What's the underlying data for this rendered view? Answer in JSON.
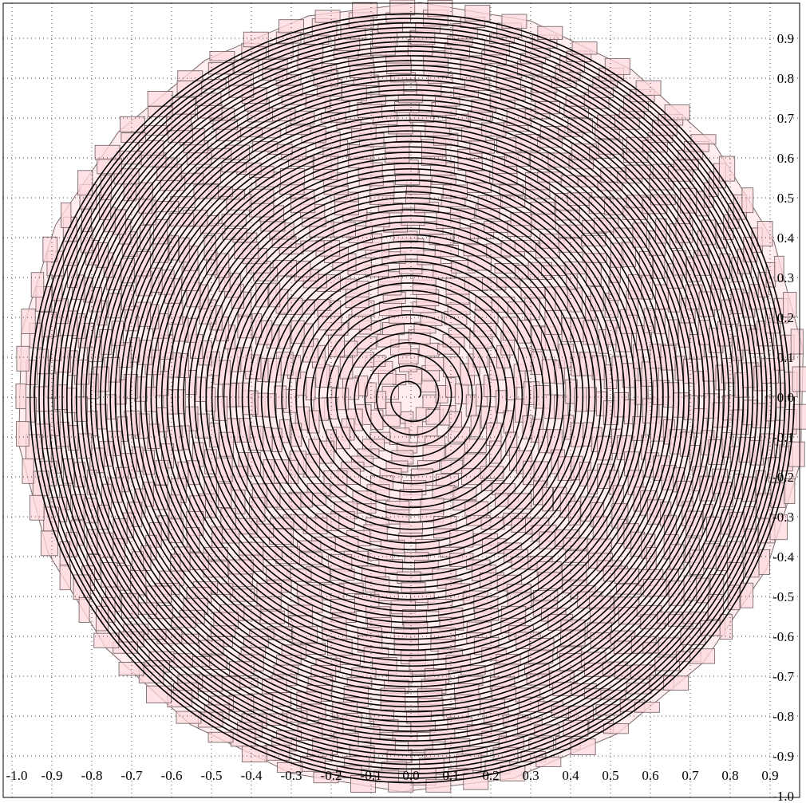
{
  "chart_data": {
    "type": "line",
    "title": "",
    "xlabel": "",
    "ylabel": "",
    "xlim": [
      -1.0,
      1.0
    ],
    "ylim": [
      -1.0,
      1.0
    ],
    "grid": true,
    "grid_style": "dotted",
    "x_ticks": [
      "-1.0",
      "-0.9",
      "-0.8",
      "-0.7",
      "-0.6",
      "-0.5",
      "-0.4",
      "-0.3",
      "-0.2",
      "-0.1",
      "0.0",
      "0.1",
      "0.2",
      "0.3",
      "0.4",
      "0.5",
      "0.6",
      "0.7",
      "0.8",
      "0.9"
    ],
    "x_tick_values": [
      -1.0,
      -0.9,
      -0.8,
      -0.7,
      -0.6,
      -0.5,
      -0.4,
      -0.3,
      -0.2,
      -0.1,
      0.0,
      0.1,
      0.2,
      0.3,
      0.4,
      0.5,
      0.6,
      0.7,
      0.8,
      0.9
    ],
    "y_ticks": [
      "0.9",
      "0.8",
      "0.7",
      "0.6",
      "0.5",
      "0.4",
      "0.3",
      "0.2",
      "0.1",
      "0.0",
      "-0.1",
      "-0.2",
      "-0.3",
      "-0.4",
      "-0.5",
      "-0.6",
      "-0.7",
      "-0.8",
      "-0.9",
      "-1.0"
    ],
    "y_tick_values": [
      0.9,
      0.8,
      0.7,
      0.6,
      0.5,
      0.4,
      0.3,
      0.2,
      0.1,
      0.0,
      -0.1,
      -0.2,
      -0.3,
      -0.4,
      -0.5,
      -0.6,
      -0.7,
      -0.8,
      -0.9,
      -1.0
    ],
    "series": [
      {
        "kind": "spiral",
        "r_start": 0.02,
        "r_end": 0.97,
        "turns": 60,
        "color": "#000000"
      },
      {
        "kind": "cells",
        "fill": "#ffd8dc",
        "stroke": "#7a6a6c",
        "r_max": 0.99
      }
    ],
    "colors": {
      "background": "#ffffff",
      "grid": "#444444",
      "spiral": "#000000",
      "cell_fill": "#ffd8dc",
      "cell_stroke": "#7a6a6c"
    }
  }
}
